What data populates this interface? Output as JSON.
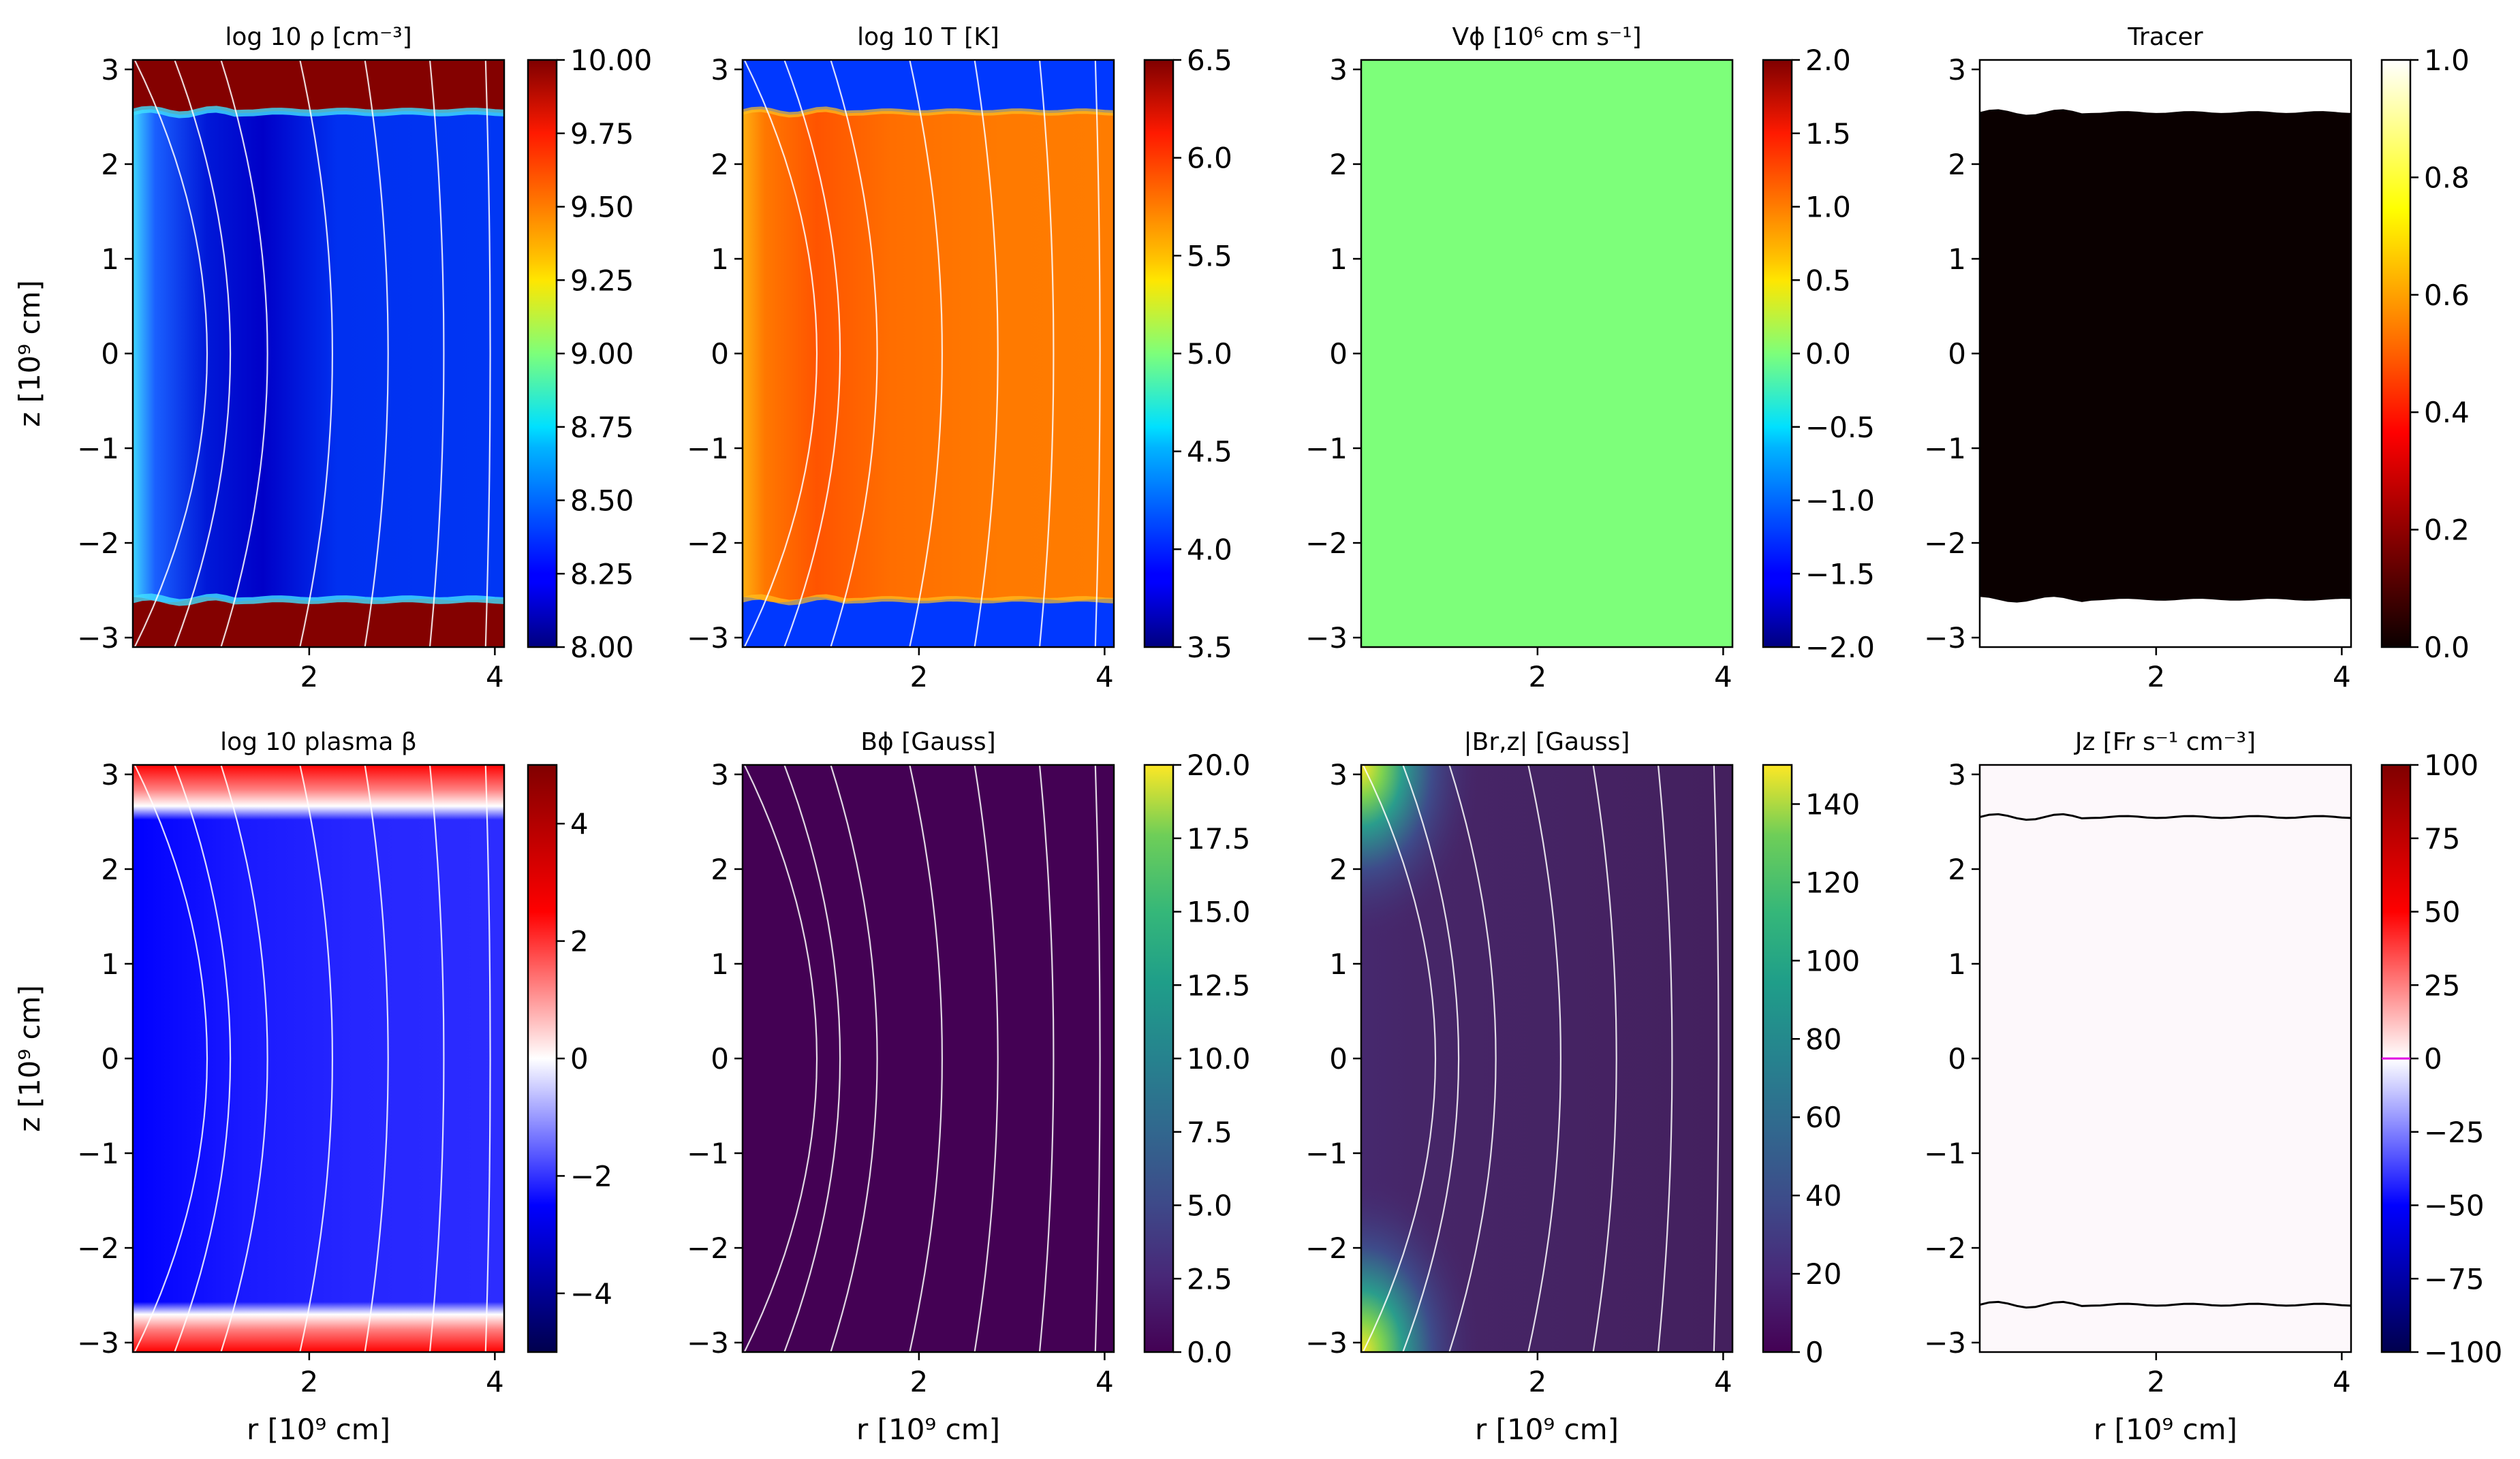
{
  "figure": {
    "xlabel": "r [10⁹ cm]",
    "ylabel": "z [10⁹ cm]"
  },
  "chart_data": [
    {
      "type": "heatmap",
      "title": "log 10 ρ [cm⁻³]",
      "variable": "density",
      "xlabel": "",
      "ylabel": "z [10⁹ cm]",
      "xlim": [
        0.1,
        4.1
      ],
      "ylim": [
        -3.1,
        3.1
      ],
      "xticks": [
        "2",
        "4"
      ],
      "yticks": [
        "−3",
        "−2",
        "−1",
        "0",
        "1",
        "2",
        "3"
      ],
      "colormap": "jet",
      "clim": [
        8.0,
        10.0
      ],
      "colorbar_ticks": [
        "8.00",
        "8.25",
        "8.50",
        "8.75",
        "9.00",
        "9.25",
        "9.50",
        "9.75",
        "10.00"
      ],
      "colorbar_values": [
        8.0,
        8.25,
        8.5,
        8.75,
        9.0,
        9.25,
        9.5,
        9.75,
        10.0
      ],
      "field_lines": true,
      "interface_z": [
        -2.6,
        2.55
      ]
    },
    {
      "type": "heatmap",
      "title": "log 10  T [K]",
      "variable": "temperature",
      "xlabel": "",
      "ylabel": "",
      "xlim": [
        0.1,
        4.1
      ],
      "ylim": [
        -3.1,
        3.1
      ],
      "xticks": [
        "2",
        "4"
      ],
      "yticks": [
        "−3",
        "−2",
        "−1",
        "0",
        "1",
        "2",
        "3"
      ],
      "colormap": "jet",
      "clim": [
        3.5,
        6.5
      ],
      "colorbar_ticks": [
        "3.5",
        "4.0",
        "4.5",
        "5.0",
        "5.5",
        "6.0",
        "6.5"
      ],
      "colorbar_values": [
        3.5,
        4.0,
        4.5,
        5.0,
        5.5,
        6.0,
        6.5
      ],
      "field_lines": true,
      "interface_z": [
        -2.6,
        2.55
      ]
    },
    {
      "type": "heatmap",
      "title": "Vϕ [10⁶ cm s⁻¹]",
      "variable": "v_phi",
      "xlabel": "",
      "ylabel": "",
      "xlim": [
        0.1,
        4.1
      ],
      "ylim": [
        -3.1,
        3.1
      ],
      "xticks": [
        "2",
        "4"
      ],
      "yticks": [
        "−3",
        "−2",
        "−1",
        "0",
        "1",
        "2",
        "3"
      ],
      "colormap": "jet",
      "clim": [
        -2.0,
        2.0
      ],
      "colorbar_ticks": [
        "−2.0",
        "−1.5",
        "−1.0",
        "−0.5",
        "0.0",
        "0.5",
        "1.0",
        "1.5",
        "2.0"
      ],
      "colorbar_values": [
        -2.0,
        -1.5,
        -1.0,
        -0.5,
        0.0,
        0.5,
        1.0,
        1.5,
        2.0
      ],
      "field_lines": false,
      "uniform_value": 0.0
    },
    {
      "type": "heatmap",
      "title": "Tracer",
      "variable": "tracer",
      "xlabel": "",
      "ylabel": "",
      "xlim": [
        0.1,
        4.1
      ],
      "ylim": [
        -3.1,
        3.1
      ],
      "xticks": [
        "2",
        "4"
      ],
      "yticks": [
        "−3",
        "−2",
        "−1",
        "0",
        "1",
        "2",
        "3"
      ],
      "colormap": "hot",
      "clim": [
        0.0,
        1.0
      ],
      "colorbar_ticks": [
        "0.0",
        "0.2",
        "0.4",
        "0.6",
        "0.8",
        "1.0"
      ],
      "colorbar_values": [
        0.0,
        0.2,
        0.4,
        0.6,
        0.8,
        1.0
      ],
      "field_lines": false,
      "interface_z": [
        -2.6,
        2.55
      ]
    },
    {
      "type": "heatmap",
      "title": "log 10 plasma β",
      "variable": "plasma_beta",
      "xlabel": "r [10⁹ cm]",
      "ylabel": "z [10⁹ cm]",
      "xlim": [
        0.1,
        4.1
      ],
      "ylim": [
        -3.1,
        3.1
      ],
      "xticks": [
        "2",
        "4"
      ],
      "yticks": [
        "−3",
        "−2",
        "−1",
        "0",
        "1",
        "2",
        "3"
      ],
      "colormap": "seismic",
      "clim": [
        -5,
        5
      ],
      "colorbar_ticks": [
        "−4",
        "−2",
        "0",
        "2",
        "4"
      ],
      "colorbar_values": [
        -4,
        -2,
        0,
        2,
        4
      ],
      "field_lines": true,
      "interface_z": [
        -2.75,
        2.7
      ]
    },
    {
      "type": "heatmap",
      "title": "Bϕ [Gauss]",
      "variable": "b_phi",
      "xlabel": "r [10⁹ cm]",
      "ylabel": "",
      "xlim": [
        0.1,
        4.1
      ],
      "ylim": [
        -3.1,
        3.1
      ],
      "xticks": [
        "2",
        "4"
      ],
      "yticks": [
        "−3",
        "−2",
        "−1",
        "0",
        "1",
        "2",
        "3"
      ],
      "colormap": "viridis",
      "clim": [
        0.0,
        20.0
      ],
      "colorbar_ticks": [
        "0.0",
        "2.5",
        "5.0",
        "7.5",
        "10.0",
        "12.5",
        "15.0",
        "17.5",
        "20.0"
      ],
      "colorbar_values": [
        0.0,
        2.5,
        5.0,
        7.5,
        10.0,
        12.5,
        15.0,
        17.5,
        20.0
      ],
      "field_lines": true,
      "uniform_value": 0.0
    },
    {
      "type": "heatmap",
      "title": "|Br,z| [Gauss]",
      "variable": "b_rz",
      "xlabel": "r [10⁹ cm]",
      "ylabel": "",
      "xlim": [
        0.1,
        4.1
      ],
      "ylim": [
        -3.1,
        3.1
      ],
      "xticks": [
        "2",
        "4"
      ],
      "yticks": [
        "−3",
        "−2",
        "−1",
        "0",
        "1",
        "2",
        "3"
      ],
      "colormap": "viridis",
      "clim": [
        0,
        150
      ],
      "colorbar_ticks": [
        "0",
        "20",
        "40",
        "60",
        "80",
        "100",
        "120",
        "140"
      ],
      "colorbar_values": [
        0,
        20,
        40,
        60,
        80,
        100,
        120,
        140
      ],
      "field_lines": true,
      "peak_value": 150
    },
    {
      "type": "heatmap",
      "title": "Jz [Fr s⁻¹ cm⁻³]",
      "variable": "j_z",
      "xlabel": "r [10⁹ cm]",
      "ylabel": "",
      "xlim": [
        0.1,
        4.1
      ],
      "ylim": [
        -3.1,
        3.1
      ],
      "xticks": [
        "2",
        "4"
      ],
      "yticks": [
        "−3",
        "−2",
        "−1",
        "0",
        "1",
        "2",
        "3"
      ],
      "colormap": "seismic",
      "clim": [
        -100,
        100
      ],
      "colorbar_ticks": [
        "−100",
        "−75",
        "−50",
        "−25",
        "0",
        "25",
        "50",
        "75",
        "100"
      ],
      "colorbar_values": [
        -100,
        -75,
        -50,
        -25,
        0,
        25,
        50,
        75,
        100
      ],
      "field_lines": false,
      "contour_lines": true,
      "interface_z": [
        -2.6,
        2.55
      ]
    }
  ]
}
